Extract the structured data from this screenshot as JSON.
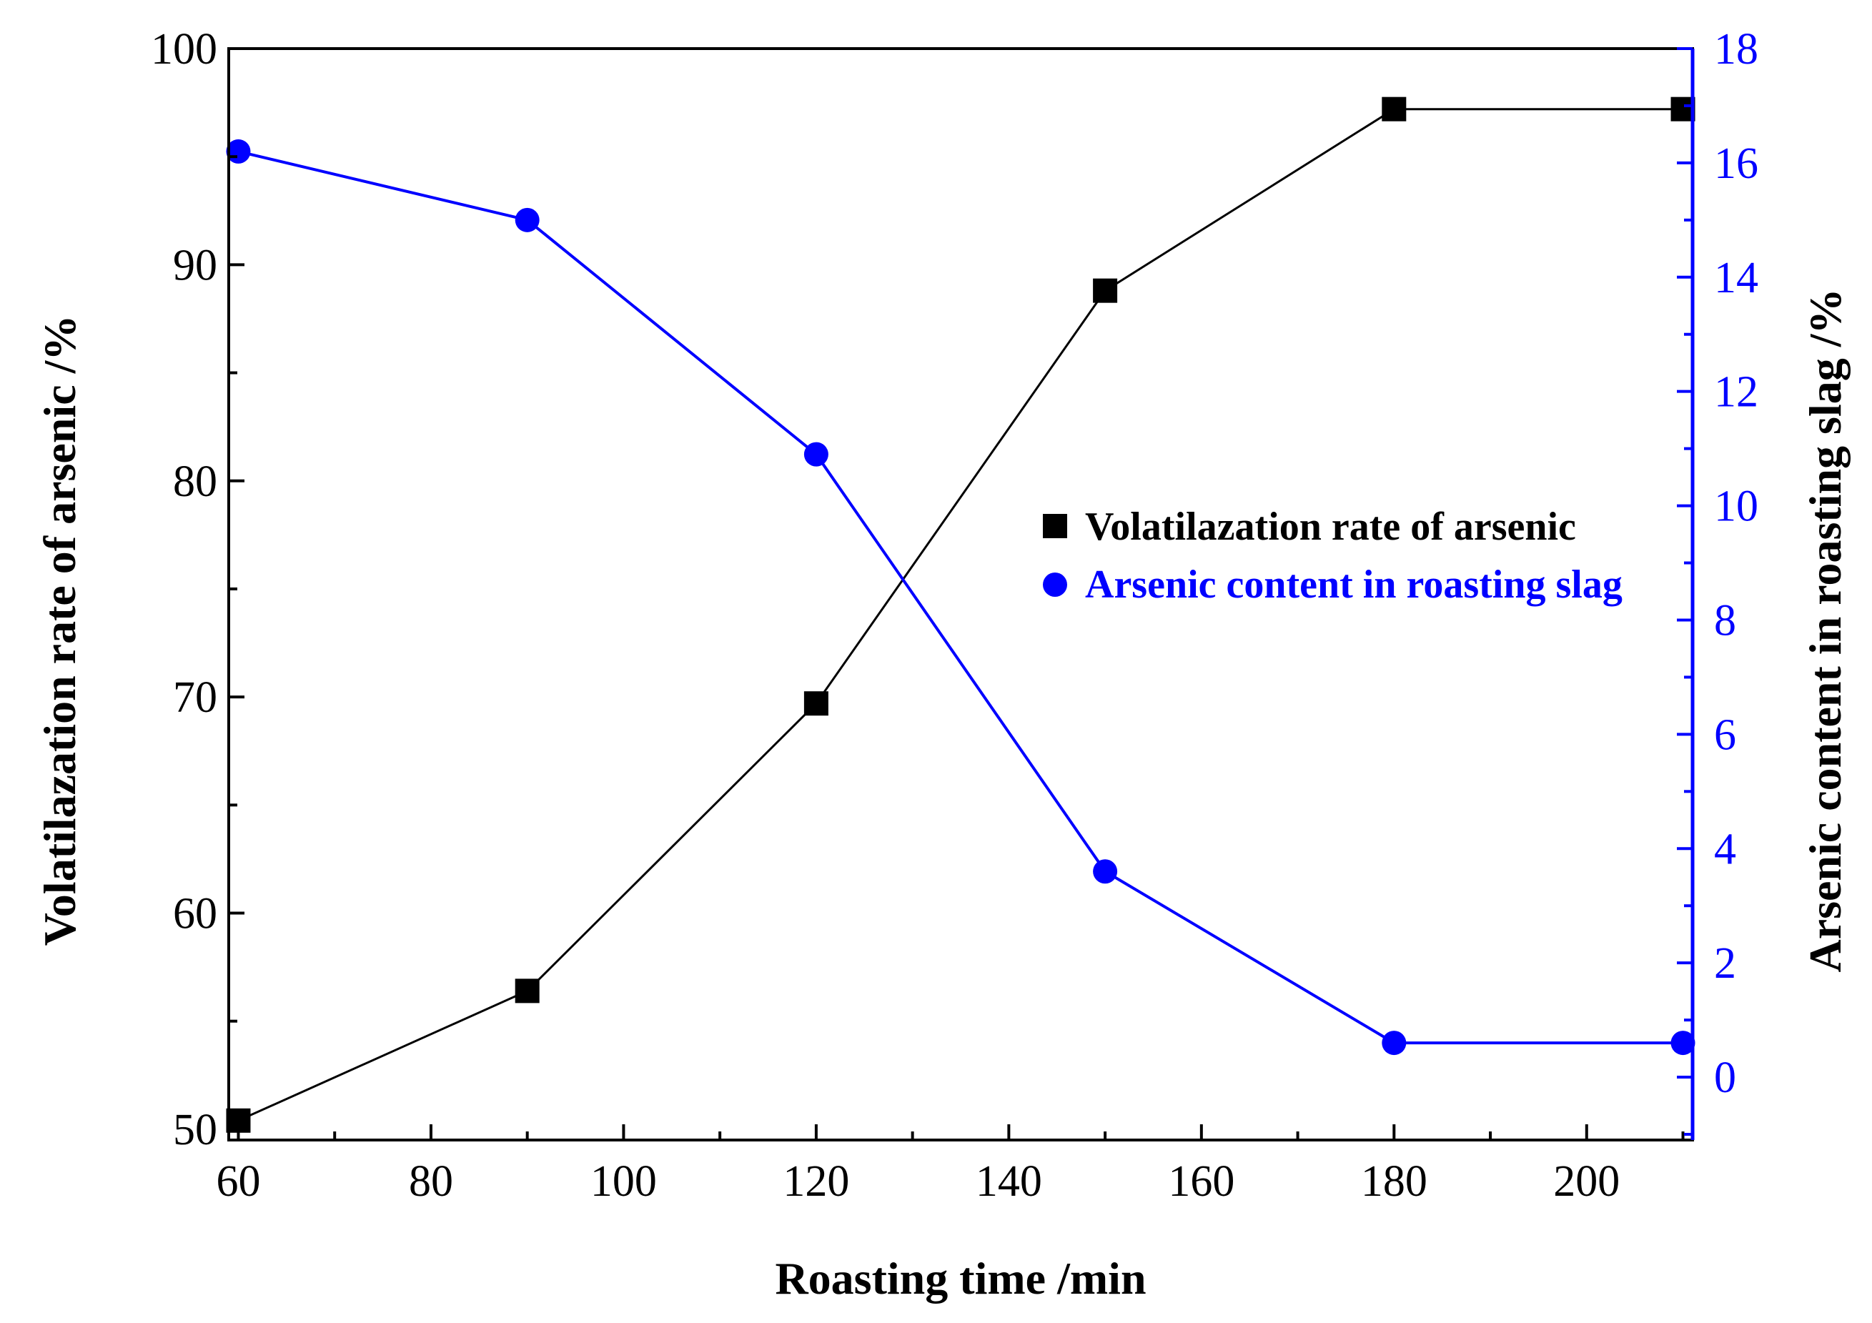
{
  "chart_data": {
    "type": "line",
    "title": "",
    "xlabel": "Roasting time /min",
    "ylabel": "Volatilazation rate of arsenic /%",
    "ylabel_right": "Arsenic content in roasting slag /%",
    "xlim": [
      59,
      211
    ],
    "ylim": [
      49.5,
      100
    ],
    "ylim_right": [
      -1.1,
      18
    ],
    "x_ticks": [
      60,
      80,
      100,
      120,
      140,
      160,
      180,
      200
    ],
    "y_ticks": [
      50,
      60,
      70,
      80,
      90,
      100
    ],
    "y_ticks_right": [
      0,
      2,
      4,
      6,
      8,
      10,
      12,
      14,
      16,
      18
    ],
    "grid": false,
    "legend_position": "center-right",
    "series": [
      {
        "name": "Volatilazation rate of arsenic",
        "axis": "left",
        "marker": "square",
        "color": "#000000",
        "x": [
          60,
          90,
          120,
          150,
          180,
          210
        ],
        "values": [
          50.4,
          56.4,
          69.7,
          88.8,
          97.2,
          97.2
        ]
      },
      {
        "name": "Arsenic content in roasting slag",
        "axis": "right",
        "marker": "circle",
        "color": "#0000ff",
        "x": [
          60,
          90,
          120,
          150,
          180,
          210
        ],
        "values": [
          16.2,
          15.0,
          10.9,
          3.6,
          0.6,
          0.6
        ]
      }
    ]
  }
}
